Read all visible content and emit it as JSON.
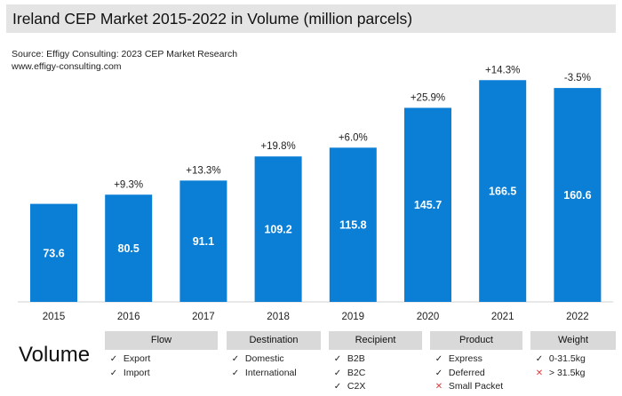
{
  "title": "Ireland CEP Market 2015-2022 in Volume (million parcels)",
  "source_line1": "Source: Effigy Consulting: 2023 CEP Market Research",
  "source_line2": "www.effigy-consulting.com",
  "chart_data": {
    "type": "bar",
    "title": "Ireland CEP Market 2015-2022 in Volume (million parcels)",
    "categories": [
      "2015",
      "2016",
      "2017",
      "2018",
      "2019",
      "2020",
      "2021",
      "2022"
    ],
    "values": [
      73.6,
      80.5,
      91.1,
      109.2,
      115.8,
      145.7,
      166.5,
      160.6
    ],
    "value_labels": [
      "73.6",
      "80.5",
      "91.1",
      "109.2",
      "115.8",
      "145.7",
      "166.5",
      "160.6"
    ],
    "growth_labels": [
      "",
      "+9.3%",
      "+13.3%",
      "+19.8%",
      "+6.0%",
      "+25.9%",
      "+14.3%",
      "-3.5%"
    ],
    "xlabel": "",
    "ylabel": "",
    "ylim": [
      0,
      180
    ],
    "color": "#0b7fd6"
  },
  "volume_label": "Volume",
  "categories_table": [
    {
      "header": "Flow",
      "items": [
        {
          "mark": "check",
          "label": "Export"
        },
        {
          "mark": "check",
          "label": "Import"
        }
      ]
    },
    {
      "header": "Destination",
      "items": [
        {
          "mark": "check",
          "label": "Domestic"
        },
        {
          "mark": "check",
          "label": "International"
        }
      ]
    },
    {
      "header": "Recipient",
      "items": [
        {
          "mark": "check",
          "label": "B2B"
        },
        {
          "mark": "check",
          "label": "B2C"
        },
        {
          "mark": "check",
          "label": "C2X"
        }
      ]
    },
    {
      "header": "Product",
      "items": [
        {
          "mark": "check",
          "label": "Express"
        },
        {
          "mark": "check",
          "label": "Deferred"
        },
        {
          "mark": "cross",
          "label": "Small Packet"
        }
      ]
    },
    {
      "header": "Weight",
      "items": [
        {
          "mark": "check",
          "label": "0-31.5kg"
        },
        {
          "mark": "cross",
          "label": "> 31.5kg"
        }
      ]
    }
  ]
}
